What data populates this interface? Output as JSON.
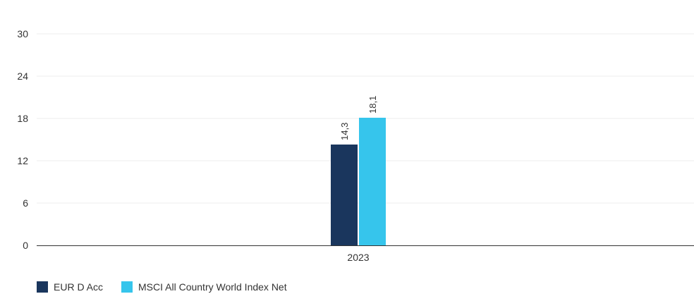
{
  "chart_data": {
    "type": "bar",
    "categories": [
      "2023"
    ],
    "series": [
      {
        "name": "EUR D Acc",
        "values": [
          14.3
        ],
        "labels": [
          "14,3"
        ],
        "color": "#1a365d"
      },
      {
        "name": "MSCI All Country World Index Net",
        "values": [
          18.1
        ],
        "labels": [
          "18,1"
        ],
        "color": "#36c5ec"
      }
    ],
    "yticks": [
      "0",
      "6",
      "12",
      "18",
      "24",
      "30"
    ],
    "ylim": [
      0,
      30
    ],
    "grid": true,
    "legend_position": "bottom-left",
    "title": "",
    "xlabel": "",
    "ylabel": ""
  }
}
